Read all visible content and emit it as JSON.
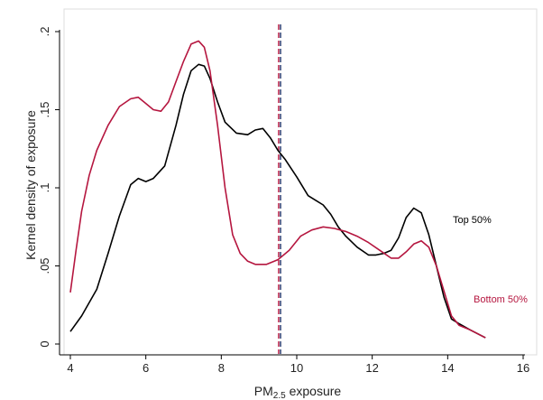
{
  "chart_data": {
    "type": "line",
    "xlabel": "PM2.5 exposure",
    "xlabel_parts": {
      "base": "PM",
      "sub": "2.5",
      "rest": " exposure"
    },
    "ylabel": "Kernel density of exposure",
    "xlim": [
      4,
      16
    ],
    "ylim": [
      0,
      0.2
    ],
    "xticks": [
      4,
      6,
      8,
      10,
      12,
      14,
      16
    ],
    "xtick_labels": [
      "4",
      "6",
      "8",
      "10",
      "12",
      "14",
      "16"
    ],
    "yticks": [
      0,
      0.05,
      0.1,
      0.15,
      0.2
    ],
    "ytick_labels": [
      "0",
      ".05",
      ".1",
      ".15",
      ".2"
    ],
    "grid": false,
    "series": [
      {
        "name": "Top 50%",
        "color": "#000000",
        "x": [
          4.0,
          4.3,
          4.7,
          5.0,
          5.3,
          5.6,
          5.8,
          6.0,
          6.2,
          6.5,
          6.8,
          7.0,
          7.2,
          7.4,
          7.55,
          7.7,
          7.9,
          8.1,
          8.4,
          8.7,
          8.9,
          9.1,
          9.3,
          9.5,
          9.7,
          10.0,
          10.3,
          10.5,
          10.7,
          10.9,
          11.1,
          11.3,
          11.6,
          11.9,
          12.1,
          12.3,
          12.5,
          12.7,
          12.9,
          13.1,
          13.3,
          13.5,
          13.7,
          13.9,
          14.1,
          14.3,
          14.6,
          15.0
        ],
        "y": [
          0.008,
          0.018,
          0.035,
          0.058,
          0.082,
          0.102,
          0.106,
          0.104,
          0.106,
          0.114,
          0.14,
          0.16,
          0.175,
          0.179,
          0.178,
          0.17,
          0.155,
          0.142,
          0.135,
          0.134,
          0.137,
          0.138,
          0.132,
          0.124,
          0.118,
          0.107,
          0.095,
          0.092,
          0.089,
          0.083,
          0.075,
          0.069,
          0.062,
          0.057,
          0.057,
          0.058,
          0.06,
          0.068,
          0.081,
          0.087,
          0.084,
          0.07,
          0.05,
          0.03,
          0.016,
          0.013,
          0.009,
          0.004
        ]
      },
      {
        "name": "Bottom 50%",
        "color": "#b5163f",
        "x": [
          4.0,
          4.15,
          4.3,
          4.5,
          4.7,
          5.0,
          5.3,
          5.6,
          5.8,
          6.0,
          6.2,
          6.4,
          6.6,
          6.8,
          7.0,
          7.2,
          7.4,
          7.55,
          7.7,
          7.9,
          8.1,
          8.3,
          8.5,
          8.7,
          8.9,
          9.2,
          9.5,
          9.8,
          10.1,
          10.4,
          10.7,
          11.0,
          11.3,
          11.6,
          11.9,
          12.2,
          12.5,
          12.7,
          12.9,
          13.1,
          13.3,
          13.5,
          13.7,
          13.9,
          14.1,
          14.3,
          14.6,
          15.0
        ],
        "y": [
          0.033,
          0.06,
          0.085,
          0.108,
          0.124,
          0.14,
          0.152,
          0.157,
          0.158,
          0.154,
          0.15,
          0.149,
          0.155,
          0.168,
          0.181,
          0.192,
          0.194,
          0.19,
          0.175,
          0.14,
          0.1,
          0.07,
          0.058,
          0.053,
          0.051,
          0.051,
          0.054,
          0.06,
          0.069,
          0.073,
          0.075,
          0.074,
          0.072,
          0.069,
          0.065,
          0.06,
          0.055,
          0.055,
          0.059,
          0.064,
          0.066,
          0.062,
          0.05,
          0.034,
          0.018,
          0.012,
          0.009,
          0.004
        ]
      }
    ],
    "vlines": [
      {
        "x": 9.52,
        "color": "#b5163f",
        "style": "dashed"
      },
      {
        "x": 9.57,
        "color": "#1f2f66",
        "style": "dashed"
      }
    ]
  }
}
